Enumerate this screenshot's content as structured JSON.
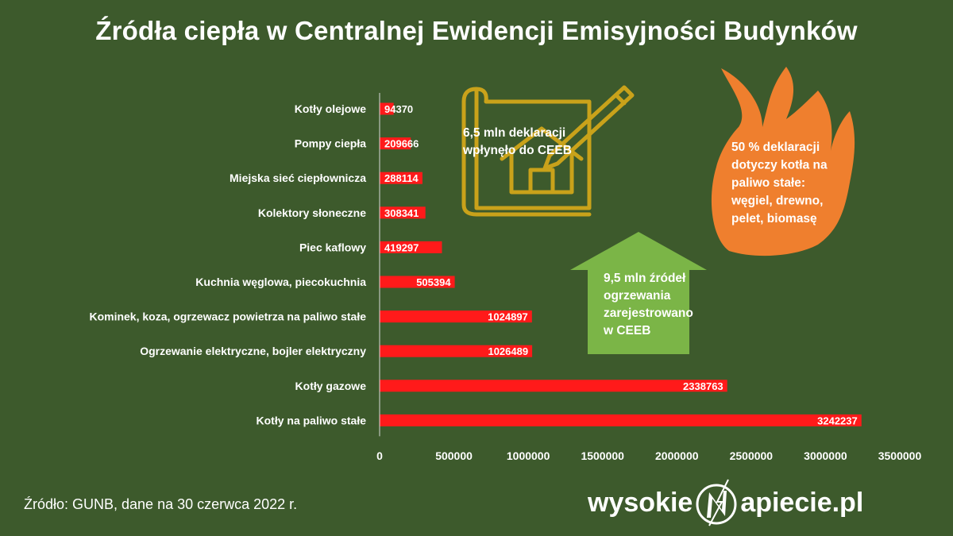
{
  "title": "Źródła ciepła w Centralnej Ewidencji Emisyjności Budynków",
  "colors": {
    "background": "#3d5a2c",
    "bar": "#ff1a1a",
    "house_outline": "#c9a21a",
    "arrow": "#7bb547",
    "flame": "#ef7f2e"
  },
  "chart_data": {
    "type": "bar",
    "orientation": "horizontal",
    "categories": [
      "Kotły olejowe",
      "Pompy ciepła",
      "Miejska sieć ciepłownicza",
      "Kolektory słoneczne",
      "Piec kaflowy",
      "Kuchnia węglowa, piecokuchnia",
      "Kominek, koza, ogrzewacz powietrza na paliwo stałe",
      "Ogrzewanie elektryczne, bojler elektryczny",
      "Kotły gazowe",
      "Kotły na paliwo stałe"
    ],
    "values": [
      94370,
      209666,
      288114,
      308341,
      419297,
      505394,
      1024897,
      1026489,
      2338763,
      3242237
    ],
    "xlim": [
      0,
      3500000
    ],
    "xticks": [
      "0",
      "500000",
      "1000000",
      "1500000",
      "2000000",
      "2500000",
      "3000000",
      "3500000"
    ],
    "data_labels": true,
    "grid": false
  },
  "annotations": {
    "declarations": [
      "6,5 mln deklaracji",
      "wpłynęło do CEEB"
    ],
    "sources": [
      "9,5 mln źródeł",
      "ogrzewania",
      "zarejestrowano",
      "w CEEB"
    ],
    "solid_fuel": [
      "50 % deklaracji",
      "dotyczy kotła na",
      "paliwo stałe:",
      "węgiel, drewno,",
      "pelet, biomasę"
    ]
  },
  "source_note": "Źródło:  GUNB, dane na 30 czerwca 2022 r.",
  "logo": {
    "left": "wysokie",
    "right": "apiecie.pl"
  }
}
